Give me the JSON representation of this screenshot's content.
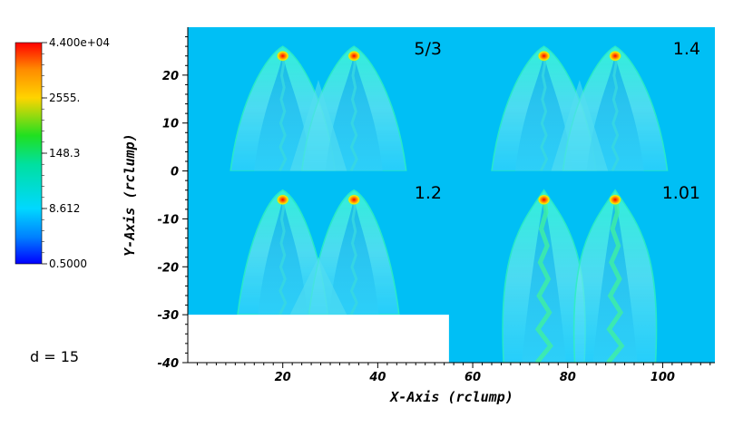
{
  "chart_data": {
    "type": "heatmap",
    "xlabel": "X-Axis (rclump)",
    "ylabel": "Y-Axis (rclump)",
    "xlim": [
      0,
      111
    ],
    "ylim": [
      -40,
      30
    ],
    "xticks": [
      20,
      40,
      60,
      80,
      100
    ],
    "yticks": [
      -40,
      -30,
      -20,
      -10,
      0,
      10,
      20
    ],
    "colorbar": {
      "scale": "log",
      "labels": [
        "4.400e+04",
        "2555.",
        "148.3",
        "8.612",
        "0.5000"
      ],
      "values": [
        44000,
        2555,
        148.3,
        8.612,
        0.5
      ],
      "colors": [
        "#ff0000",
        "#ffbf00",
        "#00ee00",
        "#00e6ff",
        "#0000ff"
      ]
    },
    "background_color": "#00bff5",
    "panels": [
      {
        "label": "5/3",
        "xrange": [
          0,
          55
        ],
        "yrange": [
          0,
          30
        ],
        "clumps_x": [
          20,
          35
        ],
        "clump_y": 24
      },
      {
        "label": "1.4",
        "xrange": [
          55,
          111
        ],
        "yrange": [
          0,
          30
        ],
        "clumps_x": [
          75,
          90
        ],
        "clump_y": 24
      },
      {
        "label": "1.2",
        "xrange": [
          0,
          55
        ],
        "yrange": [
          -30,
          0
        ],
        "clumps_x": [
          20,
          35
        ],
        "clump_y": -6
      },
      {
        "label": "1.01",
        "xrange": [
          55,
          111
        ],
        "yrange": [
          -40,
          0
        ],
        "clumps_x": [
          75,
          90
        ],
        "clump_y": -6
      }
    ],
    "empty_region": {
      "xrange": [
        0,
        55
      ],
      "yrange": [
        -40,
        -30
      ]
    },
    "annotation": "d = 15"
  }
}
